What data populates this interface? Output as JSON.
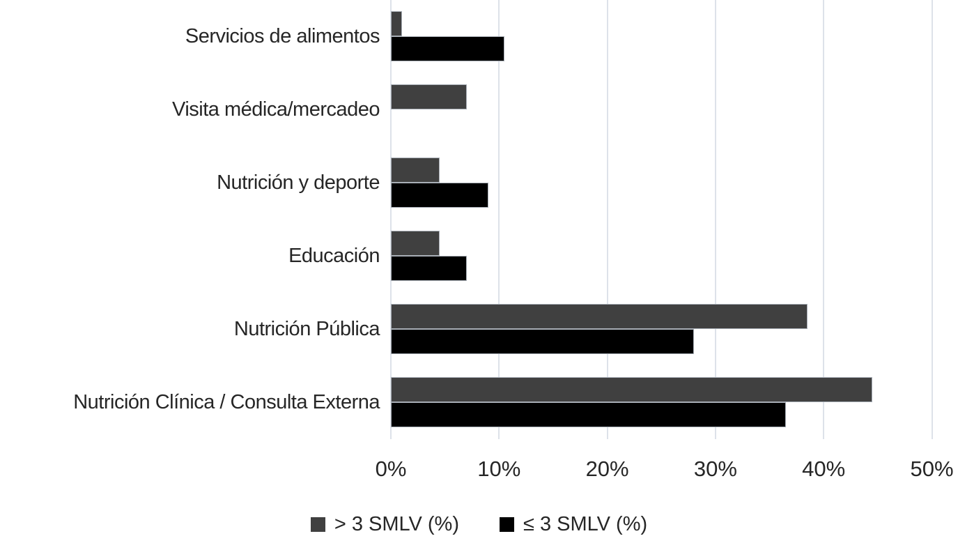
{
  "chart_data": {
    "type": "bar",
    "orientation": "horizontal",
    "title": "",
    "xlabel": "",
    "ylabel": "",
    "categories": [
      "Servicios de alimentos",
      "Visita médica/mercadeo",
      "Nutrición y deporte",
      "Educación",
      "Nutrición Pública",
      "Nutrición Clínica / Consulta Externa"
    ],
    "series": [
      {
        "name": "> 3 SMLV (%)",
        "color": "#404040",
        "values": [
          1,
          7,
          4.5,
          4.5,
          38.5,
          44.5
        ]
      },
      {
        "name": "≤ 3 SMLV (%)",
        "color": "#000000",
        "values": [
          10.5,
          0,
          9,
          7,
          28,
          36.5
        ]
      }
    ],
    "x_ticks": [
      "0%",
      "10%",
      "20%",
      "30%",
      "40%",
      "50%"
    ],
    "x_tick_values": [
      0,
      10,
      20,
      30,
      40,
      50
    ],
    "xlim": [
      0,
      50
    ],
    "grid": true,
    "gridline_color": "#dde2e9",
    "bar_border_color": "#a8aeb6",
    "text_color": "#262626",
    "legend_position": "bottom"
  }
}
